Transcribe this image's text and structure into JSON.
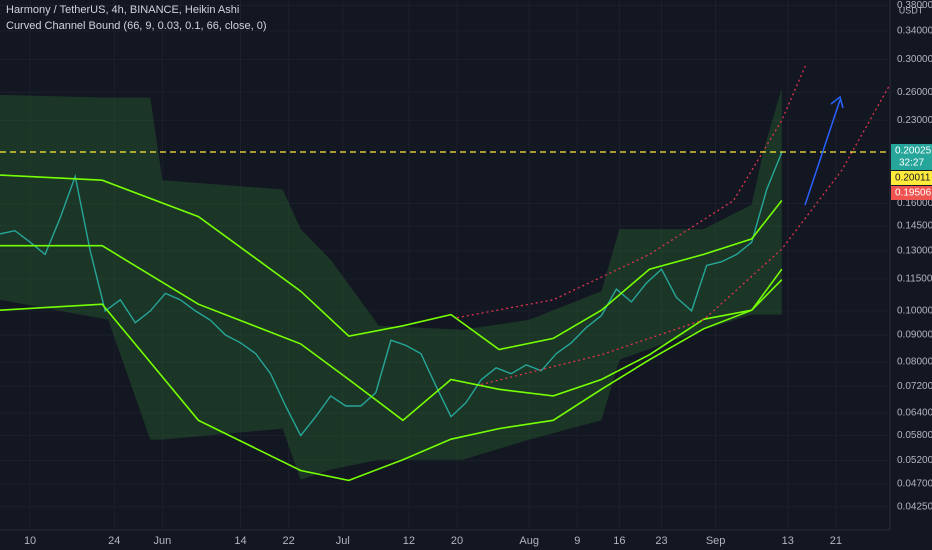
{
  "chart_data": {
    "type": "line",
    "title": "Harmony / TetherUS, 4h, BINANCE, Heikin Ashi",
    "subtitle": "Curved Channel Bound (66, 9, 0.03, 0.1, 66, close, 0)",
    "axis_unit": "USDT",
    "log_scale": true,
    "grid": true,
    "xlim": [
      -5,
      143
    ],
    "ylim": [
      0.0384,
      0.389
    ],
    "xticks": [
      {
        "value": 0,
        "label": "10"
      },
      {
        "value": 14,
        "label": "24"
      },
      {
        "value": 22,
        "label": "Jun"
      },
      {
        "value": 35,
        "label": "14"
      },
      {
        "value": 43,
        "label": "22"
      },
      {
        "value": 52,
        "label": "Jul"
      },
      {
        "value": 63,
        "label": "12"
      },
      {
        "value": 71,
        "label": "20"
      },
      {
        "value": 83,
        "label": "Aug"
      },
      {
        "value": 91,
        "label": "9"
      },
      {
        "value": 98,
        "label": "16"
      },
      {
        "value": 105,
        "label": "23"
      },
      {
        "value": 114,
        "label": "Sep"
      },
      {
        "value": 126,
        "label": "13"
      },
      {
        "value": 134,
        "label": "21"
      }
    ],
    "yticks": [
      {
        "value": 0.38,
        "label": "0.38000"
      },
      {
        "value": 0.34,
        "label": "0.34000"
      },
      {
        "value": 0.3,
        "label": "0.30000"
      },
      {
        "value": 0.26,
        "label": "0.26000"
      },
      {
        "value": 0.23,
        "label": "0.23000"
      },
      {
        "value": 0.16,
        "label": "0.16000"
      },
      {
        "value": 0.145,
        "label": "0.14500"
      },
      {
        "value": 0.13,
        "label": "0.13000"
      },
      {
        "value": 0.115,
        "label": "0.11500"
      },
      {
        "value": 0.1,
        "label": "0.10000"
      },
      {
        "value": 0.09,
        "label": "0.09000"
      },
      {
        "value": 0.08,
        "label": "0.08000"
      },
      {
        "value": 0.072,
        "label": "0.07200"
      },
      {
        "value": 0.064,
        "label": "0.06400"
      },
      {
        "value": 0.058,
        "label": "0.05800"
      },
      {
        "value": 0.052,
        "label": "0.05200"
      },
      {
        "value": 0.047,
        "label": "0.04700"
      },
      {
        "value": 0.0425,
        "label": "0.04250"
      }
    ],
    "band": {
      "color": "#2e7d32",
      "x": [
        -5,
        13,
        20,
        22,
        42,
        45,
        50,
        58,
        72,
        83,
        95,
        98,
        112,
        120,
        122,
        125
      ],
      "upper": [
        0.257,
        0.254,
        0.254,
        0.177,
        0.17,
        0.143,
        0.125,
        0.0937,
        0.0921,
        0.0962,
        0.109,
        0.143,
        0.143,
        0.159,
        0.202,
        0.265
      ],
      "lower": [
        0.105,
        0.0962,
        0.057,
        0.057,
        0.0598,
        0.0478,
        0.05,
        0.0522,
        0.0522,
        0.057,
        0.062,
        0.0808,
        0.0921,
        0.0984,
        0.0984,
        0.0984
      ]
    },
    "series": [
      {
        "color": "#26a69a",
        "width": 1.4,
        "x": [
          -5,
          -2.5,
          0,
          2.5,
          5,
          7.5,
          10,
          12.5,
          15,
          17.5,
          20,
          22.5,
          25,
          27.5,
          30,
          32.5,
          35,
          37.5,
          40,
          42.5,
          45,
          47.5,
          50,
          52.5,
          55,
          57.5,
          60,
          62.5,
          65,
          67.5,
          70,
          72.5,
          75,
          77.5,
          80,
          82.5,
          85,
          87.5,
          90,
          92.5,
          95,
          97.5,
          100,
          102.5,
          105,
          107.5,
          110,
          112.5,
          115,
          117.5,
          120,
          122.5,
          125
        ],
        "values": [
          0.14,
          0.142,
          0.135,
          0.128,
          0.15,
          0.18,
          0.13,
          0.1,
          0.105,
          0.095,
          0.1,
          0.108,
          0.105,
          0.1,
          0.096,
          0.09,
          0.087,
          0.083,
          0.076,
          0.066,
          0.058,
          0.063,
          0.069,
          0.066,
          0.066,
          0.07,
          0.088,
          0.086,
          0.083,
          0.072,
          0.063,
          0.067,
          0.074,
          0.078,
          0.076,
          0.079,
          0.077,
          0.083,
          0.087,
          0.093,
          0.098,
          0.11,
          0.104,
          0.113,
          0.12,
          0.106,
          0.1,
          0.122,
          0.124,
          0.128,
          0.135,
          0.17,
          0.2
        ]
      },
      {
        "color": "#76ff03",
        "width": 1.6,
        "x": [
          -5,
          12,
          28,
          45,
          53,
          62,
          70,
          78,
          87,
          95,
          103,
          112,
          120,
          125
        ],
        "values": [
          0.181,
          0.177,
          0.151,
          0.109,
          0.0896,
          0.0937,
          0.0984,
          0.0845,
          0.0887,
          0.1003,
          0.12,
          0.128,
          0.137,
          0.162
        ]
      },
      {
        "color": "#76ff03",
        "width": 1.6,
        "x": [
          -5,
          12,
          28,
          45,
          53,
          62,
          70,
          78,
          87,
          95,
          103,
          112,
          120,
          125
        ],
        "values": [
          0.133,
          0.133,
          0.103,
          0.0866,
          0.0741,
          0.062,
          0.0741,
          0.071,
          0.069,
          0.0741,
          0.0826,
          0.0964,
          0.1003,
          0.12
        ]
      },
      {
        "color": "#76ff03",
        "width": 1.6,
        "x": [
          -5,
          12,
          28,
          45,
          53,
          62,
          70,
          78,
          87,
          95,
          103,
          112,
          120,
          125
        ],
        "values": [
          0.1003,
          0.103,
          0.062,
          0.0498,
          0.0477,
          0.0522,
          0.0571,
          0.0598,
          0.062,
          0.071,
          0.0808,
          0.0925,
          0.1003,
          0.1146
        ]
      },
      {
        "color": "#e0344f",
        "width": 1.3,
        "dashed": true,
        "x": [
          71,
          87,
          103,
          117,
          125,
          129
        ],
        "values": [
          0.0971,
          0.105,
          0.128,
          0.162,
          0.23,
          0.293
        ]
      },
      {
        "color": "#e0344f",
        "width": 1.3,
        "dashed": true,
        "x": [
          75,
          95,
          112,
          125,
          135,
          143
        ],
        "values": [
          0.0725,
          0.0826,
          0.0962,
          0.131,
          0.185,
          0.269
        ]
      }
    ],
    "hline": {
      "value": 0.20025,
      "color": "#ffeb3b"
    },
    "price_labels": [
      {
        "value": 0.20025,
        "color": "#26a69a",
        "countdown": "32:27"
      },
      {
        "value": 0.20011,
        "color": "#ffeb3b"
      },
      {
        "value": 0.19506,
        "color": "#ef5350"
      }
    ]
  }
}
